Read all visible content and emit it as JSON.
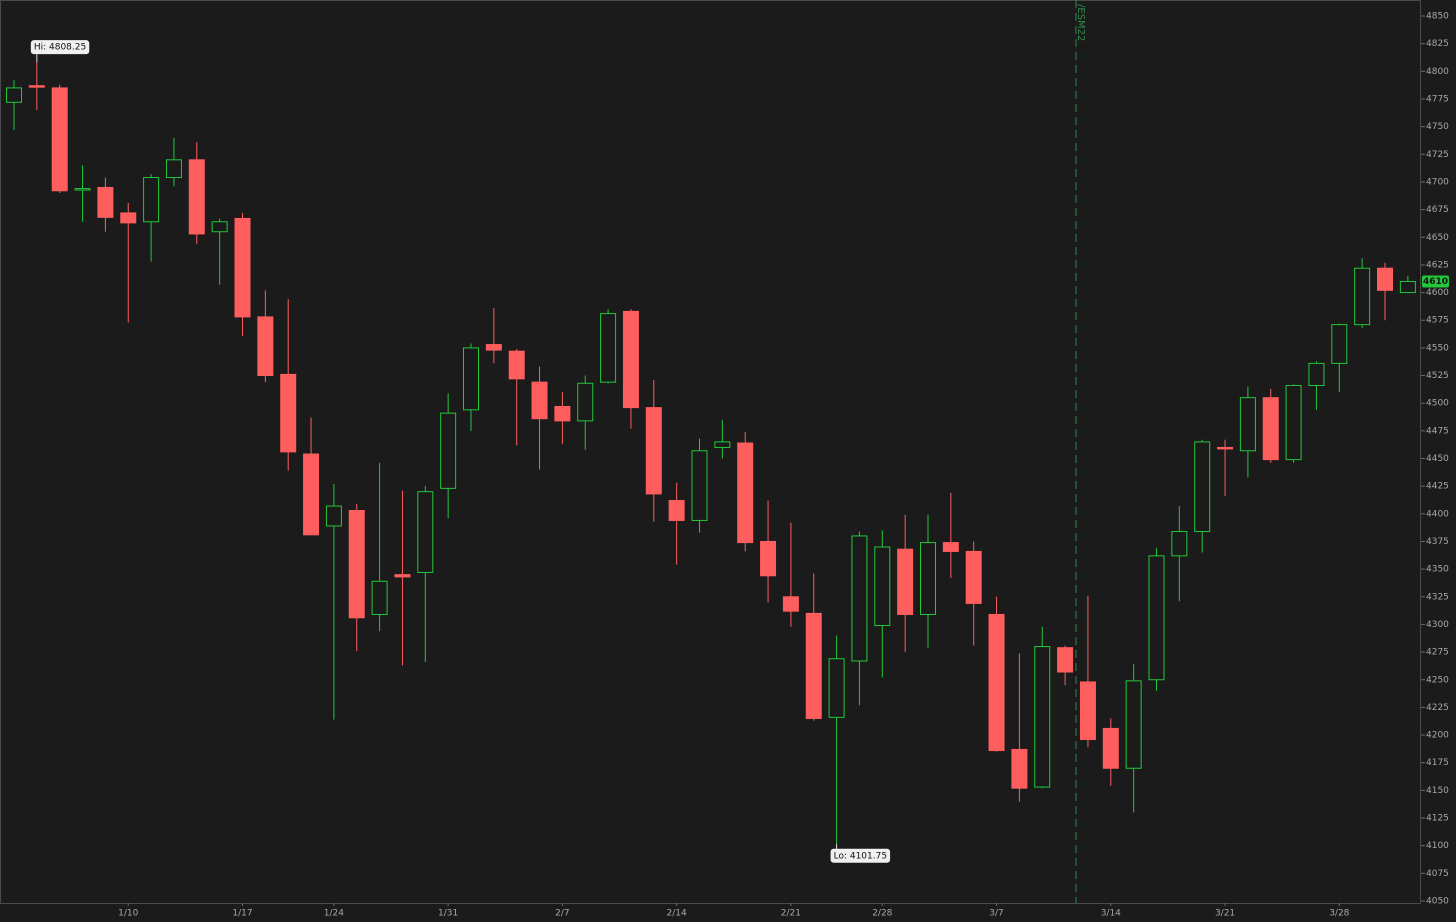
{
  "chart_data": {
    "type": "candlestick",
    "categories": [
      null,
      null,
      null,
      null,
      null,
      "1/10",
      null,
      null,
      null,
      null,
      "1/17",
      null,
      null,
      null,
      "1/24",
      null,
      null,
      null,
      null,
      "1/31",
      null,
      null,
      null,
      null,
      "2/7",
      null,
      null,
      null,
      null,
      "2/14",
      null,
      null,
      null,
      null,
      "2/21",
      null,
      null,
      null,
      "2/28",
      null,
      null,
      null,
      null,
      "3/7",
      null,
      null,
      null,
      null,
      "3/14",
      null,
      null,
      null,
      null,
      "3/21",
      null,
      null,
      null,
      null,
      "3/28",
      null,
      null,
      null
    ],
    "open": [
      4772,
      4787,
      4785,
      4693,
      4695,
      4672,
      4664,
      4704,
      4720,
      4655,
      4667,
      4578,
      4526,
      4454,
      4389,
      4403,
      4309,
      4345,
      4347,
      4423,
      4494,
      4553,
      4547,
      4519,
      4497,
      4484,
      4519,
      4583,
      4496,
      4412,
      4394,
      4460,
      4464,
      4375,
      4325,
      4310,
      4216,
      4267,
      4299,
      4368,
      4309,
      4374,
      4366,
      4309,
      4187,
      4153,
      4279,
      4248,
      4206,
      4170,
      4250,
      4362,
      4384,
      4460,
      4457,
      4505,
      4449,
      4516,
      4536,
      4571,
      4622,
      4600
    ],
    "high": [
      4792,
      4808.25,
      4788,
      4715,
      4704,
      4681,
      4707,
      4740,
      4736,
      4667,
      4672,
      4602,
      4594,
      4487,
      4427,
      4409,
      4446,
      4421,
      4425,
      4509,
      4554,
      4586,
      4549,
      4533,
      4510,
      4525,
      4585,
      4585,
      4521,
      4428,
      4468,
      4485,
      4474,
      4412,
      4392,
      4346,
      4290,
      4384,
      4385,
      4399,
      4399,
      4419,
      4375,
      4325,
      4274,
      4298,
      4281,
      4326,
      4215,
      4264,
      4369,
      4407,
      4467,
      4467,
      4515,
      4513,
      4517,
      4538,
      4572,
      4631,
      4627,
      4615
    ],
    "low": [
      4747,
      4765,
      4690,
      4664,
      4655,
      4573,
      4628,
      4696,
      4644,
      4607,
      4561,
      4519,
      4439,
      4381,
      4214,
      4276,
      4294,
      4263,
      4266,
      4396,
      4475,
      4536,
      4462,
      4440,
      4463,
      4458,
      4518,
      4477,
      4393,
      4354,
      4383,
      4450,
      4366,
      4320,
      4298,
      4213,
      4101.75,
      4227,
      4252,
      4275,
      4279,
      4342,
      4281,
      4185,
      4140,
      4152,
      4245,
      4189,
      4154,
      4130,
      4240,
      4321,
      4365,
      4416,
      4433,
      4446,
      4446,
      4494,
      4510,
      4568,
      4575,
      4600
    ],
    "close": [
      4785,
      4786,
      4692,
      4694,
      4668,
      4663,
      4704,
      4720,
      4653,
      4664,
      4578,
      4525,
      4456,
      4381,
      4407,
      4306,
      4339,
      4343,
      4420,
      4491,
      4550,
      4548,
      4522,
      4486,
      4484,
      4518,
      4581,
      4496,
      4418,
      4394,
      4457,
      4465,
      4374,
      4344,
      4312,
      4215,
      4269,
      4380,
      4370,
      4309,
      4374,
      4366,
      4319,
      4186,
      4152,
      4280,
      4257,
      4196,
      4170,
      4249,
      4362,
      4384,
      4465,
      4459,
      4505,
      4449,
      4516,
      4536,
      4571,
      4622,
      4602,
      4610
    ],
    "up_color": "#22c73a",
    "down_color": "#ff5e5e",
    "ylim": [
      4050,
      4850
    ],
    "yticks": [
      4050,
      4075,
      4100,
      4125,
      4150,
      4175,
      4200,
      4225,
      4250,
      4275,
      4300,
      4325,
      4350,
      4375,
      4400,
      4425,
      4450,
      4475,
      4500,
      4525,
      4550,
      4575,
      4600,
      4625,
      4650,
      4675,
      4700,
      4725,
      4750,
      4775,
      4800,
      4825,
      4850
    ],
    "high_label": "Hi: 4808.25",
    "low_label": "Lo: 4101.75",
    "last_price": 4610,
    "contract_label": "/ESM22"
  }
}
